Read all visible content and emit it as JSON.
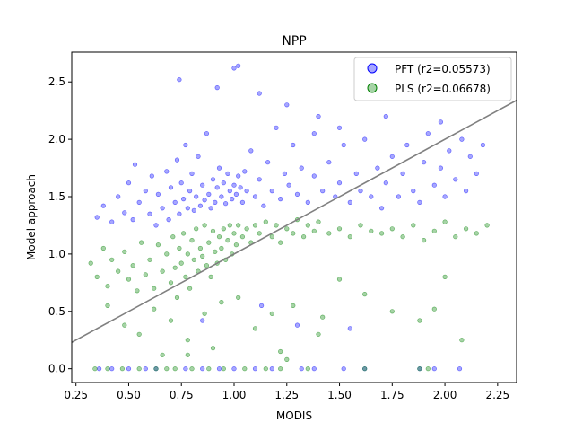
{
  "chart_data": {
    "type": "scatter",
    "title": "NPP",
    "xlabel": "MODIS",
    "ylabel": "Model approach",
    "xlim": [
      0.23,
      2.34
    ],
    "ylim": [
      -0.12,
      2.76
    ],
    "x_ticks": [
      "0.25",
      "0.50",
      "0.75",
      "1.00",
      "1.25",
      "1.50",
      "1.75",
      "2.00",
      "2.25"
    ],
    "y_ticks": [
      "0.0",
      "0.5",
      "1.0",
      "1.5",
      "2.0",
      "2.5"
    ],
    "grid": false,
    "legend_position": "top-right",
    "reference_line": {
      "slope": 1,
      "intercept": 0,
      "color": "#808080"
    },
    "series": [
      {
        "name": "PFT (r2=0.05573)",
        "color": "#0000ff",
        "points": [
          [
            0.35,
            1.32
          ],
          [
            0.38,
            1.42
          ],
          [
            0.42,
            1.28
          ],
          [
            0.45,
            1.5
          ],
          [
            0.48,
            1.36
          ],
          [
            0.5,
            1.62
          ],
          [
            0.52,
            1.3
          ],
          [
            0.53,
            1.78
          ],
          [
            0.55,
            1.45
          ],
          [
            0.58,
            1.55
          ],
          [
            0.6,
            1.35
          ],
          [
            0.61,
            1.68
          ],
          [
            0.63,
            1.25
          ],
          [
            0.64,
            1.52
          ],
          [
            0.66,
            1.4
          ],
          [
            0.68,
            1.72
          ],
          [
            0.69,
            1.3
          ],
          [
            0.7,
            1.58
          ],
          [
            0.72,
            1.45
          ],
          [
            0.73,
            1.82
          ],
          [
            0.74,
            1.35
          ],
          [
            0.75,
            1.62
          ],
          [
            0.76,
            1.48
          ],
          [
            0.77,
            1.95
          ],
          [
            0.78,
            1.4
          ],
          [
            0.79,
            1.55
          ],
          [
            0.8,
            1.7
          ],
          [
            0.81,
            1.38
          ],
          [
            0.82,
            1.5
          ],
          [
            0.83,
            1.85
          ],
          [
            0.84,
            1.42
          ],
          [
            0.85,
            1.6
          ],
          [
            0.86,
            1.47
          ],
          [
            0.87,
            2.05
          ],
          [
            0.88,
            1.52
          ],
          [
            0.89,
            1.4
          ],
          [
            0.9,
            1.65
          ],
          [
            0.91,
            1.45
          ],
          [
            0.92,
            1.58
          ],
          [
            0.93,
            1.75
          ],
          [
            0.94,
            1.5
          ],
          [
            0.95,
            1.62
          ],
          [
            0.96,
            1.44
          ],
          [
            0.97,
            1.7
          ],
          [
            0.98,
            1.55
          ],
          [
            0.99,
            1.48
          ],
          [
            1.0,
            1.6
          ],
          [
            1.01,
            1.52
          ],
          [
            1.02,
            1.68
          ],
          [
            1.03,
            1.58
          ],
          [
            1.04,
            1.45
          ],
          [
            1.05,
            1.72
          ],
          [
            1.06,
            1.55
          ],
          [
            1.08,
            1.9
          ],
          [
            1.1,
            1.5
          ],
          [
            1.12,
            1.65
          ],
          [
            1.14,
            1.42
          ],
          [
            1.16,
            1.8
          ],
          [
            1.18,
            1.55
          ],
          [
            1.2,
            2.1
          ],
          [
            1.22,
            1.48
          ],
          [
            1.24,
            1.7
          ],
          [
            1.26,
            1.6
          ],
          [
            1.28,
            1.95
          ],
          [
            1.3,
            1.52
          ],
          [
            1.32,
            1.75
          ],
          [
            1.35,
            1.45
          ],
          [
            1.38,
            1.68
          ],
          [
            1.4,
            2.2
          ],
          [
            1.42,
            1.55
          ],
          [
            1.45,
            1.8
          ],
          [
            1.48,
            1.5
          ],
          [
            1.5,
            1.62
          ],
          [
            1.52,
            1.95
          ],
          [
            1.55,
            1.45
          ],
          [
            1.58,
            1.7
          ],
          [
            1.6,
            1.55
          ],
          [
            1.62,
            2.0
          ],
          [
            1.65,
            1.5
          ],
          [
            1.68,
            1.75
          ],
          [
            1.7,
            1.4
          ],
          [
            1.72,
            1.62
          ],
          [
            1.75,
            1.85
          ],
          [
            1.78,
            1.5
          ],
          [
            1.8,
            1.7
          ],
          [
            1.82,
            1.95
          ],
          [
            1.85,
            1.55
          ],
          [
            1.88,
            1.45
          ],
          [
            1.9,
            1.8
          ],
          [
            1.92,
            2.05
          ],
          [
            1.95,
            1.6
          ],
          [
            1.98,
            1.75
          ],
          [
            2.0,
            1.5
          ],
          [
            2.02,
            1.9
          ],
          [
            2.05,
            1.65
          ],
          [
            2.08,
            2.0
          ],
          [
            2.1,
            1.55
          ],
          [
            2.12,
            1.85
          ],
          [
            2.15,
            1.7
          ],
          [
            2.18,
            1.95
          ],
          [
            0.74,
            2.52
          ],
          [
            0.92,
            2.45
          ],
          [
            1.0,
            2.62
          ],
          [
            1.02,
            2.64
          ],
          [
            1.12,
            2.4
          ],
          [
            1.25,
            2.3
          ],
          [
            1.38,
            2.05
          ],
          [
            1.5,
            2.1
          ],
          [
            1.72,
            2.2
          ],
          [
            1.98,
            2.15
          ],
          [
            0.36,
            0.0
          ],
          [
            0.42,
            0.0
          ],
          [
            0.5,
            0.0
          ],
          [
            0.58,
            0.0
          ],
          [
            0.63,
            0.0
          ],
          [
            0.77,
            0.0
          ],
          [
            0.85,
            0.0
          ],
          [
            0.93,
            0.0
          ],
          [
            1.0,
            0.0
          ],
          [
            1.1,
            0.0
          ],
          [
            1.18,
            0.0
          ],
          [
            1.32,
            0.0
          ],
          [
            1.38,
            0.0
          ],
          [
            1.52,
            0.0
          ],
          [
            1.62,
            0.0
          ],
          [
            1.88,
            0.0
          ],
          [
            1.95,
            0.0
          ],
          [
            2.07,
            0.0
          ],
          [
            1.3,
            0.38
          ],
          [
            1.55,
            0.35
          ],
          [
            0.85,
            0.42
          ],
          [
            1.13,
            0.55
          ]
        ]
      },
      {
        "name": "PLS (r2=0.06678)",
        "color": "#008000",
        "points": [
          [
            0.32,
            0.92
          ],
          [
            0.35,
            0.8
          ],
          [
            0.38,
            1.05
          ],
          [
            0.4,
            0.72
          ],
          [
            0.42,
            0.95
          ],
          [
            0.45,
            0.85
          ],
          [
            0.48,
            1.02
          ],
          [
            0.5,
            0.78
          ],
          [
            0.52,
            0.9
          ],
          [
            0.54,
            0.68
          ],
          [
            0.56,
            1.1
          ],
          [
            0.58,
            0.82
          ],
          [
            0.6,
            0.95
          ],
          [
            0.62,
            0.7
          ],
          [
            0.64,
            1.08
          ],
          [
            0.66,
            0.85
          ],
          [
            0.68,
            1.0
          ],
          [
            0.7,
            0.75
          ],
          [
            0.71,
            1.15
          ],
          [
            0.72,
            0.88
          ],
          [
            0.73,
            0.62
          ],
          [
            0.74,
            1.05
          ],
          [
            0.75,
            0.92
          ],
          [
            0.76,
            1.18
          ],
          [
            0.77,
            0.8
          ],
          [
            0.78,
            1.0
          ],
          [
            0.79,
            0.7
          ],
          [
            0.8,
            1.12
          ],
          [
            0.81,
            0.95
          ],
          [
            0.82,
            1.22
          ],
          [
            0.83,
            0.85
          ],
          [
            0.84,
            1.05
          ],
          [
            0.85,
            0.98
          ],
          [
            0.86,
            1.25
          ],
          [
            0.87,
            0.9
          ],
          [
            0.88,
            1.1
          ],
          [
            0.89,
            0.8
          ],
          [
            0.9,
            1.2
          ],
          [
            0.91,
            1.02
          ],
          [
            0.92,
            0.92
          ],
          [
            0.93,
            1.15
          ],
          [
            0.94,
            1.05
          ],
          [
            0.95,
            1.22
          ],
          [
            0.96,
            0.95
          ],
          [
            0.97,
            1.12
          ],
          [
            0.98,
            1.25
          ],
          [
            0.99,
            1.0
          ],
          [
            1.0,
            1.18
          ],
          [
            1.01,
            1.08
          ],
          [
            1.02,
            1.25
          ],
          [
            1.04,
            1.15
          ],
          [
            1.06,
            1.22
          ],
          [
            1.08,
            1.1
          ],
          [
            1.1,
            1.25
          ],
          [
            1.12,
            1.18
          ],
          [
            1.15,
            1.28
          ],
          [
            1.18,
            1.15
          ],
          [
            1.2,
            1.25
          ],
          [
            1.22,
            1.1
          ],
          [
            1.25,
            1.22
          ],
          [
            1.28,
            1.18
          ],
          [
            1.3,
            1.3
          ],
          [
            1.33,
            1.15
          ],
          [
            1.35,
            1.25
          ],
          [
            1.38,
            1.2
          ],
          [
            1.4,
            1.28
          ],
          [
            1.45,
            1.18
          ],
          [
            1.5,
            1.22
          ],
          [
            1.55,
            1.15
          ],
          [
            1.6,
            1.25
          ],
          [
            1.65,
            1.2
          ],
          [
            1.7,
            1.18
          ],
          [
            1.75,
            1.22
          ],
          [
            1.8,
            1.15
          ],
          [
            1.85,
            1.25
          ],
          [
            1.9,
            1.12
          ],
          [
            1.95,
            1.2
          ],
          [
            2.0,
            1.28
          ],
          [
            2.05,
            1.15
          ],
          [
            2.1,
            1.22
          ],
          [
            2.15,
            1.18
          ],
          [
            2.2,
            1.25
          ],
          [
            0.4,
            0.55
          ],
          [
            0.48,
            0.38
          ],
          [
            0.55,
            0.3
          ],
          [
            0.62,
            0.52
          ],
          [
            0.7,
            0.42
          ],
          [
            0.78,
            0.25
          ],
          [
            0.86,
            0.48
          ],
          [
            0.94,
            0.58
          ],
          [
            1.02,
            0.62
          ],
          [
            1.1,
            0.35
          ],
          [
            1.18,
            0.48
          ],
          [
            1.28,
            0.55
          ],
          [
            1.4,
            0.3
          ],
          [
            1.5,
            0.78
          ],
          [
            1.62,
            0.65
          ],
          [
            1.75,
            0.5
          ],
          [
            1.88,
            0.42
          ],
          [
            2.0,
            0.8
          ],
          [
            2.08,
            0.25
          ],
          [
            0.66,
            0.12
          ],
          [
            0.9,
            0.18
          ],
          [
            1.22,
            0.15
          ],
          [
            1.42,
            0.45
          ],
          [
            1.95,
            0.52
          ],
          [
            0.34,
            0.0
          ],
          [
            0.4,
            0.0
          ],
          [
            0.47,
            0.0
          ],
          [
            0.55,
            0.0
          ],
          [
            0.63,
            0.0
          ],
          [
            0.68,
            0.0
          ],
          [
            0.72,
            0.0
          ],
          [
            0.8,
            0.0
          ],
          [
            0.88,
            0.0
          ],
          [
            0.95,
            0.0
          ],
          [
            1.05,
            0.0
          ],
          [
            1.15,
            0.0
          ],
          [
            1.22,
            0.0
          ],
          [
            1.35,
            0.0
          ],
          [
            1.62,
            0.0
          ],
          [
            1.88,
            0.0
          ],
          [
            1.92,
            0.0
          ],
          [
            0.78,
            0.12
          ],
          [
            1.25,
            0.08
          ]
        ]
      }
    ]
  }
}
